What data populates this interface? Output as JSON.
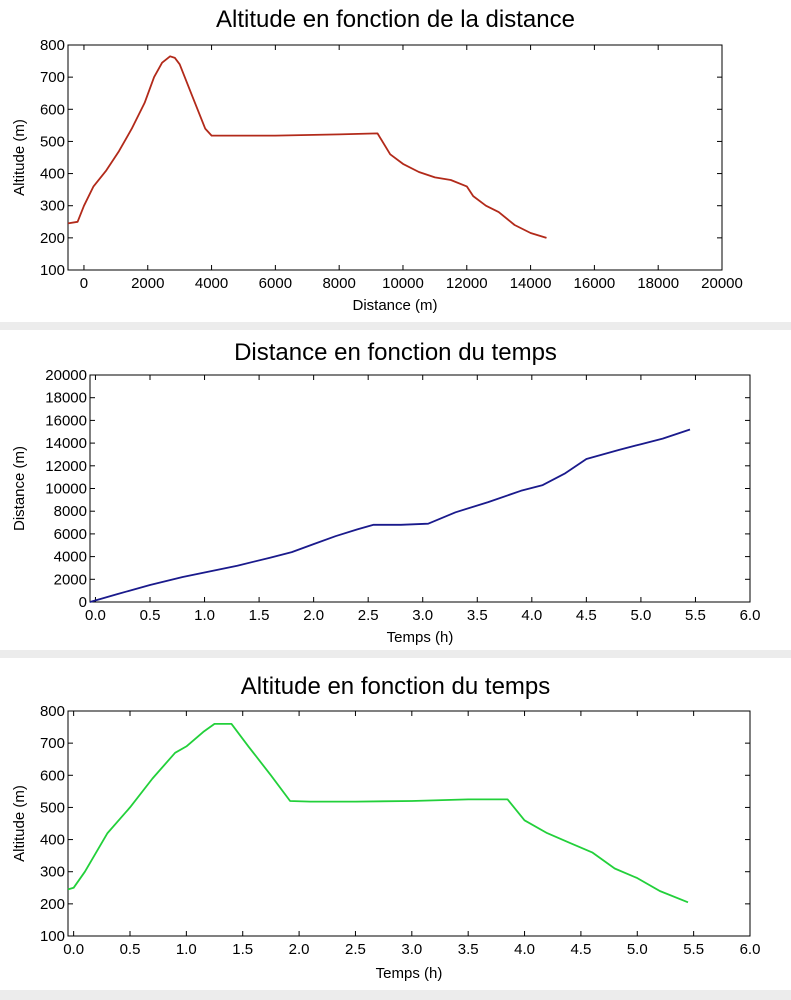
{
  "chart_data": [
    {
      "type": "line",
      "title": "Altitude en fonction de la distance",
      "xlabel": "Distance (m)",
      "ylabel": "Altitude (m)",
      "xlim": [
        -500,
        20000
      ],
      "ylim": [
        100,
        800
      ],
      "xticks": [
        0,
        2000,
        4000,
        6000,
        8000,
        10000,
        12000,
        14000,
        16000,
        18000,
        20000
      ],
      "yticks": [
        100,
        200,
        300,
        400,
        500,
        600,
        700,
        800
      ],
      "grid": false,
      "color": "#b22a1a",
      "series": [
        {
          "x": [
            -500,
            -200,
            0,
            300,
            700,
            1100,
            1500,
            1900,
            2200,
            2450,
            2700,
            2850,
            3000,
            3400,
            3800,
            4000,
            5000,
            6000,
            7000,
            8000,
            9200,
            9600,
            10000,
            10500,
            11000,
            11500,
            12000,
            12200,
            12600,
            13000,
            13500,
            14000,
            14500
          ],
          "y": [
            245,
            250,
            300,
            360,
            410,
            470,
            540,
            620,
            700,
            745,
            765,
            760,
            740,
            640,
            540,
            518,
            518,
            518,
            520,
            522,
            525,
            460,
            430,
            405,
            388,
            380,
            360,
            330,
            300,
            280,
            240,
            215,
            200
          ]
        }
      ]
    },
    {
      "type": "line",
      "title": "Distance en fonction du temps",
      "xlabel": "Temps (h)",
      "ylabel": "Distance (m)",
      "xlim": [
        -0.05,
        6.0
      ],
      "ylim": [
        0,
        20000
      ],
      "xticks": [
        0.0,
        0.5,
        1.0,
        1.5,
        2.0,
        2.5,
        3.0,
        3.5,
        4.0,
        4.5,
        5.0,
        5.5,
        6.0
      ],
      "yticks": [
        0,
        2000,
        4000,
        6000,
        8000,
        10000,
        12000,
        14000,
        16000,
        18000,
        20000
      ],
      "grid": false,
      "color": "#1a1a8c",
      "series": [
        {
          "x": [
            -0.05,
            0.2,
            0.5,
            0.8,
            1.0,
            1.3,
            1.6,
            1.8,
            2.0,
            2.2,
            2.4,
            2.55,
            2.8,
            3.05,
            3.3,
            3.6,
            3.9,
            4.1,
            4.3,
            4.5,
            4.8,
            5.0,
            5.2,
            5.45
          ],
          "y": [
            0,
            700,
            1500,
            2200,
            2600,
            3200,
            3900,
            4400,
            5100,
            5800,
            6400,
            6800,
            6800,
            6900,
            7900,
            8800,
            9800,
            10300,
            11300,
            12600,
            13400,
            13900,
            14400,
            15200
          ]
        }
      ]
    },
    {
      "type": "line",
      "title": "Altitude en fonction du temps",
      "xlabel": "Temps (h)",
      "ylabel": "Altitude (m)",
      "xlim": [
        -0.05,
        6.0
      ],
      "ylim": [
        100,
        800
      ],
      "xticks": [
        0.0,
        0.5,
        1.0,
        1.5,
        2.0,
        2.5,
        3.0,
        3.5,
        4.0,
        4.5,
        5.0,
        5.5,
        6.0
      ],
      "yticks": [
        100,
        200,
        300,
        400,
        500,
        600,
        700,
        800
      ],
      "grid": false,
      "color": "#22d03a",
      "series": [
        {
          "x": [
            -0.05,
            0.0,
            0.1,
            0.3,
            0.5,
            0.7,
            0.9,
            1.0,
            1.15,
            1.25,
            1.4,
            1.55,
            1.75,
            1.92,
            2.1,
            2.5,
            3.0,
            3.5,
            3.85,
            4.0,
            4.2,
            4.4,
            4.6,
            4.8,
            5.0,
            5.2,
            5.45
          ],
          "y": [
            245,
            250,
            300,
            420,
            500,
            590,
            670,
            690,
            735,
            760,
            760,
            690,
            600,
            520,
            518,
            518,
            520,
            525,
            525,
            460,
            420,
            390,
            360,
            310,
            280,
            240,
            205
          ]
        }
      ]
    }
  ]
}
